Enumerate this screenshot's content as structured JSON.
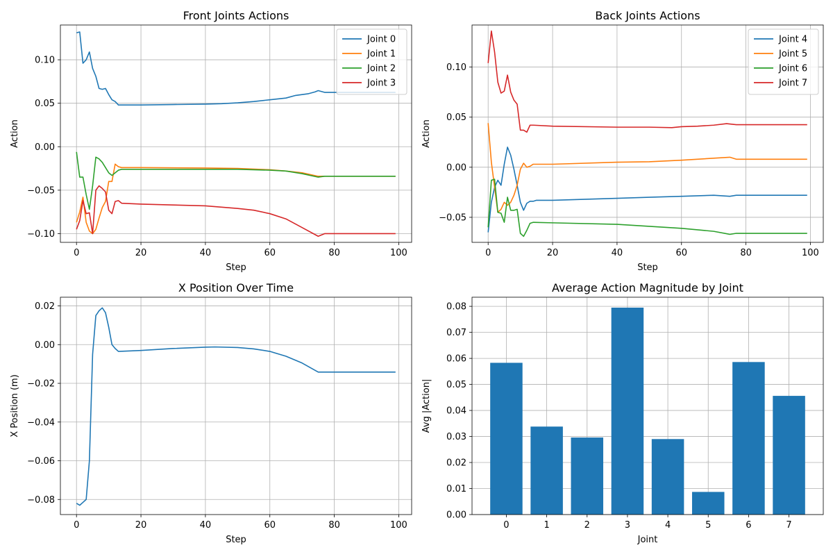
{
  "colors": {
    "c0": "#1f77b4",
    "c1": "#ff7f0e",
    "c2": "#2ca02c",
    "c3": "#d62728"
  },
  "chart_data": [
    {
      "type": "line",
      "title": "Front Joints Actions",
      "xlabel": "Step",
      "ylabel": "Action",
      "xlim": [
        -5,
        104
      ],
      "ylim": [
        -0.11,
        0.14
      ],
      "xticks": [
        0,
        20,
        40,
        60,
        80,
        100
      ],
      "yticks": [
        -0.1,
        -0.05,
        0.0,
        0.05,
        0.1
      ],
      "ytick_labels": [
        "−0.10",
        "−0.05",
        "0.00",
        "0.05",
        "0.10"
      ],
      "grid": true,
      "legend": "top-right",
      "series": [
        {
          "name": "Joint 0",
          "color": "#1f77b4",
          "points": [
            [
              0,
              0.131
            ],
            [
              1,
              0.132
            ],
            [
              2,
              0.096
            ],
            [
              3,
              0.1
            ],
            [
              4,
              0.109
            ],
            [
              5,
              0.09
            ],
            [
              6,
              0.081
            ],
            [
              7,
              0.067
            ],
            [
              8,
              0.066
            ],
            [
              9,
              0.067
            ],
            [
              10,
              0.06
            ],
            [
              11,
              0.054
            ],
            [
              12,
              0.052
            ],
            [
              13,
              0.048
            ],
            [
              20,
              0.048
            ],
            [
              30,
              0.0485
            ],
            [
              40,
              0.049
            ],
            [
              45,
              0.0495
            ],
            [
              50,
              0.0505
            ],
            [
              55,
              0.052
            ],
            [
              60,
              0.054
            ],
            [
              65,
              0.056
            ],
            [
              68,
              0.059
            ],
            [
              72,
              0.061
            ],
            [
              74,
              0.063
            ],
            [
              75,
              0.0645
            ],
            [
              77,
              0.0625
            ],
            [
              80,
              0.0625
            ],
            [
              99,
              0.0625
            ]
          ]
        },
        {
          "name": "Joint 1",
          "color": "#ff7f0e",
          "points": [
            [
              0,
              -0.087
            ],
            [
              1,
              -0.075
            ],
            [
              2,
              -0.058
            ],
            [
              3,
              -0.087
            ],
            [
              4,
              -0.097
            ],
            [
              5,
              -0.1
            ],
            [
              6,
              -0.095
            ],
            [
              7,
              -0.082
            ],
            [
              8,
              -0.07
            ],
            [
              9,
              -0.063
            ],
            [
              10,
              -0.04
            ],
            [
              11,
              -0.04
            ],
            [
              12,
              -0.02
            ],
            [
              13,
              -0.023
            ],
            [
              14,
              -0.024
            ],
            [
              20,
              -0.024
            ],
            [
              40,
              -0.0245
            ],
            [
              50,
              -0.025
            ],
            [
              60,
              -0.0265
            ],
            [
              65,
              -0.028
            ],
            [
              70,
              -0.03
            ],
            [
              75,
              -0.034
            ],
            [
              77,
              -0.034
            ],
            [
              99,
              -0.034
            ]
          ]
        },
        {
          "name": "Joint 2",
          "color": "#2ca02c",
          "points": [
            [
              0,
              -0.006
            ],
            [
              1,
              -0.035
            ],
            [
              2,
              -0.035
            ],
            [
              3,
              -0.055
            ],
            [
              4,
              -0.072
            ],
            [
              5,
              -0.045
            ],
            [
              6,
              -0.012
            ],
            [
              7,
              -0.014
            ],
            [
              8,
              -0.018
            ],
            [
              9,
              -0.024
            ],
            [
              10,
              -0.03
            ],
            [
              11,
              -0.033
            ],
            [
              12,
              -0.03
            ],
            [
              13,
              -0.027
            ],
            [
              14,
              -0.026
            ],
            [
              20,
              -0.026
            ],
            [
              40,
              -0.026
            ],
            [
              50,
              -0.026
            ],
            [
              60,
              -0.027
            ],
            [
              65,
              -0.028
            ],
            [
              70,
              -0.031
            ],
            [
              75,
              -0.035
            ],
            [
              77,
              -0.034
            ],
            [
              99,
              -0.034
            ]
          ]
        },
        {
          "name": "Joint 3",
          "color": "#d62728",
          "points": [
            [
              0,
              -0.095
            ],
            [
              1,
              -0.085
            ],
            [
              2,
              -0.062
            ],
            [
              3,
              -0.077
            ],
            [
              4,
              -0.076
            ],
            [
              5,
              -0.1
            ],
            [
              6,
              -0.05
            ],
            [
              7,
              -0.045
            ],
            [
              8,
              -0.048
            ],
            [
              9,
              -0.052
            ],
            [
              10,
              -0.073
            ],
            [
              11,
              -0.077
            ],
            [
              12,
              -0.063
            ],
            [
              13,
              -0.062
            ],
            [
              14,
              -0.065
            ],
            [
              20,
              -0.066
            ],
            [
              30,
              -0.067
            ],
            [
              40,
              -0.068
            ],
            [
              50,
              -0.071
            ],
            [
              55,
              -0.073
            ],
            [
              60,
              -0.077
            ],
            [
              65,
              -0.083
            ],
            [
              70,
              -0.093
            ],
            [
              75,
              -0.103
            ],
            [
              77,
              -0.1
            ],
            [
              99,
              -0.1
            ]
          ]
        }
      ]
    },
    {
      "type": "line",
      "title": "Back Joints Actions",
      "xlabel": "Step",
      "ylabel": "Action",
      "xlim": [
        -5,
        104
      ],
      "ylim": [
        -0.075,
        0.142
      ],
      "xticks": [
        0,
        20,
        40,
        60,
        80,
        100
      ],
      "yticks": [
        -0.05,
        0.0,
        0.05,
        0.1
      ],
      "ytick_labels": [
        "−0.05",
        "0.00",
        "0.05",
        "0.10"
      ],
      "grid": true,
      "legend": "top-right",
      "series": [
        {
          "name": "Joint 4",
          "color": "#1f77b4",
          "points": [
            [
              0,
              -0.065
            ],
            [
              1,
              -0.035
            ],
            [
              2,
              -0.02
            ],
            [
              3,
              -0.013
            ],
            [
              4,
              -0.018
            ],
            [
              5,
              0.003
            ],
            [
              6,
              0.02
            ],
            [
              7,
              0.012
            ],
            [
              8,
              -0.002
            ],
            [
              9,
              -0.018
            ],
            [
              10,
              -0.035
            ],
            [
              11,
              -0.043
            ],
            [
              12,
              -0.036
            ],
            [
              13,
              -0.034
            ],
            [
              14,
              -0.034
            ],
            [
              15,
              -0.033
            ],
            [
              20,
              -0.033
            ],
            [
              40,
              -0.031
            ],
            [
              50,
              -0.03
            ],
            [
              60,
              -0.029
            ],
            [
              70,
              -0.028
            ],
            [
              75,
              -0.029
            ],
            [
              77,
              -0.028
            ],
            [
              99,
              -0.028
            ]
          ]
        },
        {
          "name": "Joint 5",
          "color": "#ff7f0e",
          "points": [
            [
              0,
              0.044
            ],
            [
              1,
              0.005
            ],
            [
              2,
              -0.02
            ],
            [
              3,
              -0.045
            ],
            [
              4,
              -0.042
            ],
            [
              5,
              -0.035
            ],
            [
              6,
              -0.038
            ],
            [
              7,
              -0.035
            ],
            [
              8,
              -0.028
            ],
            [
              9,
              -0.018
            ],
            [
              10,
              -0.002
            ],
            [
              11,
              0.004
            ],
            [
              12,
              0.0
            ],
            [
              13,
              0.001
            ],
            [
              14,
              0.003
            ],
            [
              20,
              0.003
            ],
            [
              40,
              0.005
            ],
            [
              50,
              0.0055
            ],
            [
              60,
              0.007
            ],
            [
              70,
              0.009
            ],
            [
              75,
              0.01
            ],
            [
              77,
              0.008
            ],
            [
              99,
              0.008
            ]
          ]
        },
        {
          "name": "Joint 6",
          "color": "#2ca02c",
          "points": [
            [
              0,
              -0.06
            ],
            [
              1,
              -0.013
            ],
            [
              2,
              -0.012
            ],
            [
              3,
              -0.045
            ],
            [
              4,
              -0.046
            ],
            [
              5,
              -0.055
            ],
            [
              6,
              -0.03
            ],
            [
              7,
              -0.043
            ],
            [
              8,
              -0.043
            ],
            [
              9,
              -0.042
            ],
            [
              10,
              -0.066
            ],
            [
              11,
              -0.069
            ],
            [
              12,
              -0.063
            ],
            [
              13,
              -0.056
            ],
            [
              14,
              -0.055
            ],
            [
              20,
              -0.0555
            ],
            [
              40,
              -0.057
            ],
            [
              50,
              -0.059
            ],
            [
              60,
              -0.061
            ],
            [
              70,
              -0.064
            ],
            [
              75,
              -0.067
            ],
            [
              77,
              -0.066
            ],
            [
              99,
              -0.066
            ]
          ]
        },
        {
          "name": "Joint 7",
          "color": "#d62728",
          "points": [
            [
              0,
              0.104
            ],
            [
              1,
              0.136
            ],
            [
              2,
              0.115
            ],
            [
              3,
              0.085
            ],
            [
              4,
              0.074
            ],
            [
              5,
              0.076
            ],
            [
              6,
              0.092
            ],
            [
              7,
              0.075
            ],
            [
              8,
              0.067
            ],
            [
              9,
              0.063
            ],
            [
              10,
              0.037
            ],
            [
              11,
              0.037
            ],
            [
              12,
              0.035
            ],
            [
              13,
              0.042
            ],
            [
              14,
              0.042
            ],
            [
              20,
              0.041
            ],
            [
              40,
              0.04
            ],
            [
              50,
              0.04
            ],
            [
              57,
              0.0395
            ],
            [
              60,
              0.0405
            ],
            [
              65,
              0.041
            ],
            [
              70,
              0.042
            ],
            [
              74,
              0.0435
            ],
            [
              77,
              0.0425
            ],
            [
              99,
              0.0425
            ]
          ]
        }
      ]
    },
    {
      "type": "line",
      "title": "X Position Over Time",
      "xlabel": "Step",
      "ylabel": "X Position (m)",
      "xlim": [
        -5,
        104
      ],
      "ylim": [
        -0.0878,
        0.0245
      ],
      "xticks": [
        0,
        20,
        40,
        60,
        80,
        100
      ],
      "yticks": [
        -0.08,
        -0.06,
        -0.04,
        -0.02,
        0.0,
        0.02
      ],
      "ytick_labels": [
        "−0.08",
        "−0.06",
        "−0.04",
        "−0.02",
        "0.00",
        "0.02"
      ],
      "grid": true,
      "series": [
        {
          "name": "",
          "color": "#1f77b4",
          "points": [
            [
              0,
              -0.082
            ],
            [
              1,
              -0.083
            ],
            [
              2,
              -0.0815
            ],
            [
              3,
              -0.08
            ],
            [
              4,
              -0.06
            ],
            [
              5,
              -0.005
            ],
            [
              6,
              0.015
            ],
            [
              7,
              0.0175
            ],
            [
              8,
              0.019
            ],
            [
              9,
              0.0165
            ],
            [
              10,
              0.009
            ],
            [
              11,
              0.0
            ],
            [
              12,
              -0.002
            ],
            [
              13,
              -0.0035
            ],
            [
              20,
              -0.003
            ],
            [
              30,
              -0.002
            ],
            [
              40,
              -0.0013
            ],
            [
              43,
              -0.0012
            ],
            [
              50,
              -0.0015
            ],
            [
              55,
              -0.0022
            ],
            [
              60,
              -0.0035
            ],
            [
              65,
              -0.006
            ],
            [
              70,
              -0.0095
            ],
            [
              75,
              -0.0142
            ],
            [
              80,
              -0.0142
            ],
            [
              99,
              -0.0142
            ]
          ]
        }
      ]
    },
    {
      "type": "bar",
      "title": "Average Action Magnitude by Joint",
      "xlabel": "Joint",
      "ylabel": "Avg |Action|",
      "xlim": [
        -0.85,
        7.85
      ],
      "ylim": [
        0,
        0.0835
      ],
      "categories": [
        "0",
        "1",
        "2",
        "3",
        "4",
        "5",
        "6",
        "7"
      ],
      "values": [
        0.0583,
        0.0338,
        0.0296,
        0.0795,
        0.029,
        0.0087,
        0.0586,
        0.0456
      ],
      "yticks": [
        0.0,
        0.01,
        0.02,
        0.03,
        0.04,
        0.05,
        0.06,
        0.07,
        0.08
      ],
      "ytick_labels": [
        "0.00",
        "0.01",
        "0.02",
        "0.03",
        "0.04",
        "0.05",
        "0.06",
        "0.07",
        "0.08"
      ],
      "color": "#1f77b4",
      "grid": true
    }
  ]
}
